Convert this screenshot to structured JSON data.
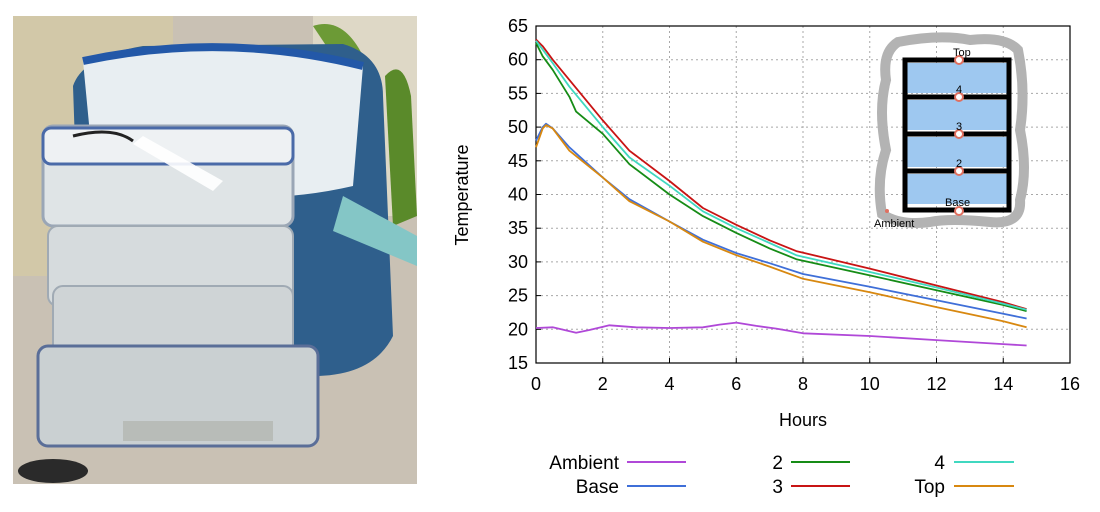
{
  "photo": {
    "icon": "photo-of-stacked-plastic-containers-beside-insulated-bag"
  },
  "chart_data": {
    "type": "line",
    "xlabel": "Hours",
    "ylabel": "Temperature",
    "xlim": [
      0,
      16
    ],
    "ylim": [
      15,
      65
    ],
    "xticks": [
      0,
      2,
      4,
      6,
      8,
      10,
      12,
      14,
      16
    ],
    "yticks": [
      15,
      20,
      25,
      30,
      35,
      40,
      45,
      50,
      55,
      60,
      65
    ],
    "grid": true,
    "legend_position": "bottom",
    "series": [
      {
        "name": "Ambient",
        "color": "#b048d8",
        "x": [
          0,
          0.5,
          1.2,
          1.6,
          2.2,
          3,
          4,
          5,
          5.5,
          6,
          6.6,
          7.2,
          8,
          10,
          12,
          14,
          14.7
        ],
        "y": [
          20.2,
          20.3,
          19.5,
          19.9,
          20.6,
          20.3,
          20.2,
          20.3,
          20.7,
          21.0,
          20.5,
          20.1,
          19.4,
          19.0,
          18.4,
          17.8,
          17.6
        ]
      },
      {
        "name": "Base",
        "color": "#3f6fd8",
        "x": [
          0,
          0.2,
          0.3,
          0.5,
          1.0,
          2.0,
          2.8,
          4.0,
          5.0,
          6.0,
          7.0,
          8.0,
          10.0,
          12.0,
          14.0,
          14.7
        ],
        "y": [
          48.0,
          50.0,
          50.5,
          49.8,
          47.0,
          42.5,
          39.3,
          36.0,
          33.3,
          31.3,
          29.8,
          28.2,
          26.3,
          24.3,
          22.3,
          21.6
        ]
      },
      {
        "name": "2",
        "color": "#168c16",
        "x": [
          0,
          0.2,
          0.5,
          1.0,
          1.2,
          2.0,
          2.8,
          4.0,
          5.0,
          6.0,
          7.0,
          7.8,
          10.0,
          12.0,
          14.0,
          14.7
        ],
        "y": [
          62.5,
          60.5,
          58.5,
          54.5,
          52.3,
          49.0,
          44.5,
          40.0,
          36.8,
          34.3,
          32.0,
          30.4,
          28.0,
          25.8,
          23.6,
          22.7
        ]
      },
      {
        "name": "3",
        "color": "#c81414",
        "x": [
          0,
          0.2,
          0.5,
          1.0,
          2.0,
          2.8,
          4.0,
          5.0,
          6.0,
          7.0,
          7.8,
          10.0,
          12.0,
          14.0,
          14.7
        ],
        "y": [
          63.0,
          62.0,
          60.0,
          57.0,
          51.0,
          46.5,
          42.0,
          38.0,
          35.5,
          33.2,
          31.6,
          29.0,
          26.5,
          24.0,
          23.0
        ]
      },
      {
        "name": "4",
        "color": "#40d8c0",
        "x": [
          0,
          0.2,
          0.5,
          1.0,
          2.0,
          2.8,
          4.0,
          5.0,
          6.0,
          7.0,
          7.8,
          10.0,
          12.0,
          14.0,
          14.7
        ],
        "y": [
          62.8,
          61.5,
          59.5,
          56.0,
          50.0,
          45.5,
          41.3,
          37.5,
          35.0,
          32.8,
          31.0,
          28.5,
          26.2,
          23.8,
          22.9
        ]
      },
      {
        "name": "Top",
        "color": "#d88810",
        "x": [
          0,
          0.2,
          0.3,
          0.5,
          1.0,
          2.0,
          2.8,
          4.0,
          5.0,
          6.0,
          7.0,
          8.0,
          10.0,
          12.0,
          14.0,
          14.7
        ],
        "y": [
          47.0,
          49.8,
          50.3,
          49.8,
          46.5,
          42.5,
          39.0,
          36.0,
          33.0,
          31.0,
          29.3,
          27.5,
          25.5,
          23.3,
          21.2,
          20.3
        ]
      }
    ],
    "inset": {
      "labels": {
        "top": "Top",
        "l4": "4",
        "l3": "3",
        "l2": "2",
        "base": "Base",
        "ambient": "Ambient"
      }
    }
  }
}
